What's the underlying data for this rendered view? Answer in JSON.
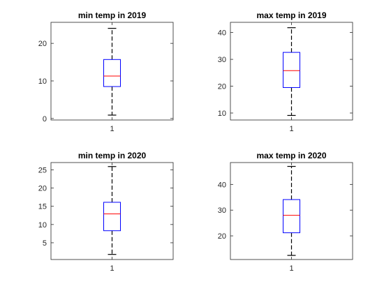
{
  "chart_data": [
    {
      "type": "boxplot",
      "title": "min temp in 2019",
      "xtick_labels": [
        "1"
      ],
      "yticks": [
        0,
        10,
        20
      ],
      "ylim": [
        -0.4,
        25.6
      ],
      "box": {
        "whisker_low": 0.9,
        "q1": 8.5,
        "median": 11.3,
        "q3": 15.7,
        "whisker_high": 24.0
      },
      "colors": {
        "box": "#0000ff",
        "median": "#ff0000",
        "whisker": "#000000"
      }
    },
    {
      "type": "boxplot",
      "title": "max temp in 2019",
      "xtick_labels": [
        "1"
      ],
      "yticks": [
        10,
        20,
        30,
        40
      ],
      "ylim": [
        7.4,
        43.8
      ],
      "box": {
        "whisker_low": 9.1,
        "q1": 19.5,
        "median": 25.8,
        "q3": 32.6,
        "whisker_high": 41.8
      },
      "colors": {
        "box": "#0000ff",
        "median": "#ff0000",
        "whisker": "#000000"
      }
    },
    {
      "type": "boxplot",
      "title": "min temp in 2020",
      "xtick_labels": [
        "1"
      ],
      "yticks": [
        5,
        10,
        15,
        20,
        25
      ],
      "ylim": [
        0.4,
        27.0
      ],
      "box": {
        "whisker_low": 1.8,
        "q1": 8.3,
        "median": 12.9,
        "q3": 16.1,
        "whisker_high": 25.9
      },
      "colors": {
        "box": "#0000ff",
        "median": "#ff0000",
        "whisker": "#000000"
      }
    },
    {
      "type": "boxplot",
      "title": "max temp in 2020",
      "xtick_labels": [
        "1"
      ],
      "yticks": [
        20,
        30,
        40
      ],
      "ylim": [
        10.8,
        48.5
      ],
      "box": {
        "whisker_low": 12.4,
        "q1": 21.2,
        "median": 28.0,
        "q3": 34.1,
        "whisker_high": 47.0
      },
      "colors": {
        "box": "#0000ff",
        "median": "#ff0000",
        "whisker": "#000000"
      }
    }
  ]
}
